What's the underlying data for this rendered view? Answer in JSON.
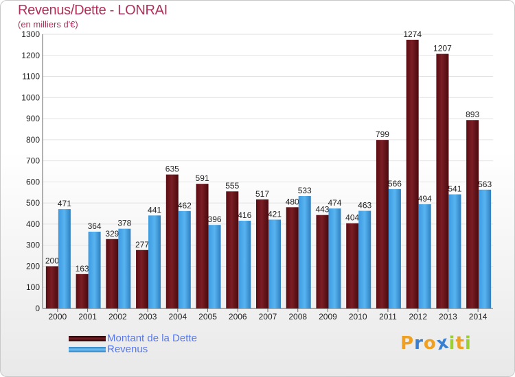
{
  "title": "Revenus/Dette - LONRAI",
  "subtitle": "(en milliers d'€)",
  "colors": {
    "debt": "#7a1e24",
    "debt_dark": "#4a0a0e",
    "revenue": "#4aa8e8",
    "revenue_dark": "#2e7fbf",
    "axis_text": "#222222",
    "grid": "#e2e2e2"
  },
  "legend": [
    {
      "label": "Montant de la Dette",
      "color": "#5a1016"
    },
    {
      "label": "Revenus",
      "color": "#4aa8e8"
    }
  ],
  "logo": {
    "letters": [
      "P",
      "r",
      "o",
      "x",
      "i",
      "t",
      "i"
    ],
    "colors": [
      "#f0a020",
      "#3a7fd0",
      "#f0a020",
      "#3a7fd0",
      "#9ad030",
      "#f0a020",
      "#9ad030"
    ]
  },
  "chart_data": {
    "type": "bar",
    "categories": [
      "2000",
      "2001",
      "2002",
      "2003",
      "2004",
      "2005",
      "2006",
      "2007",
      "2008",
      "2009",
      "2010",
      "2011",
      "2012",
      "2013",
      "2014"
    ],
    "series": [
      {
        "name": "Montant de la Dette",
        "values": [
          200,
          163,
          329,
          277,
          635,
          591,
          555,
          517,
          480,
          443,
          404,
          799,
          1274,
          1207,
          893
        ]
      },
      {
        "name": "Revenus",
        "values": [
          471,
          364,
          378,
          441,
          462,
          396,
          416,
          421,
          533,
          474,
          463,
          566,
          494,
          541,
          563
        ]
      }
    ],
    "ylim": [
      0,
      1300
    ],
    "yticks": [
      "0",
      "100",
      "200",
      "300",
      "400",
      "500",
      "600",
      "700",
      "800",
      "900",
      "1000",
      "1100",
      "1200",
      "1300"
    ],
    "grid": true,
    "legend_position": "bottom-left"
  }
}
